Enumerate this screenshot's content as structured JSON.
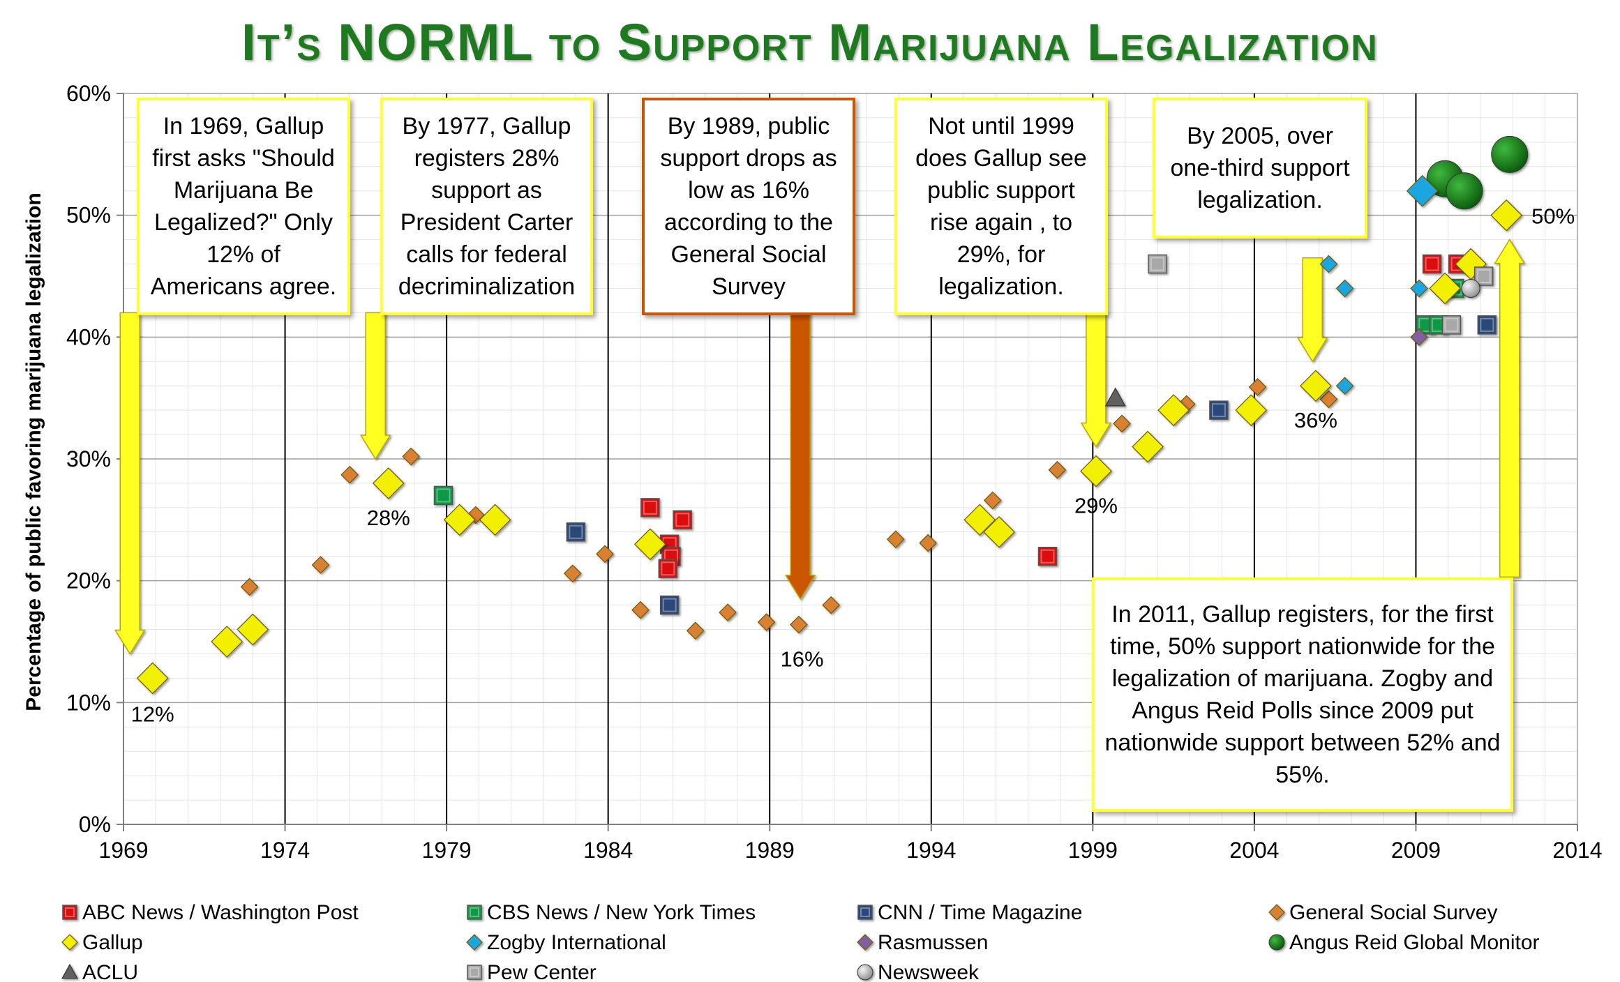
{
  "title": "It’s NORML to Support Marijuana Legalization",
  "colors": {
    "abc": "#dd1111",
    "cbs": "#119944",
    "cnn": "#2a4a7a",
    "gss": "#d98030",
    "gallup": "#f2ef00",
    "zogby": "#1fa6e0",
    "rasmussen": "#8060a0",
    "angus": "#0c6e0c",
    "aclu": "#606060",
    "pew": "#a8a8a8",
    "newsweek": "#c4c4c4",
    "arrow_yellow": "#ffff22",
    "arrow_orange": "#cc5500"
  },
  "callouts": [
    {
      "id": "c1969",
      "text": "In 1969, Gallup first asks \"Should Marijuana Be Legalized?\"  Only 12% of Americans agree.",
      "style": "yellow"
    },
    {
      "id": "c1977",
      "text": "By 1977, Gallup registers 28% support as President Carter calls for federal decriminalization",
      "style": "yellow"
    },
    {
      "id": "c1989",
      "text": "By 1989, public support drops as low as 16% according to the General Social Survey",
      "style": "orange"
    },
    {
      "id": "c1999",
      "text": "Not until 1999 does Gallup see public support rise again , to 29%, for legalization.",
      "style": "yellow"
    },
    {
      "id": "c2005",
      "text": "By 2005, over one-third support legalization.",
      "style": "yellow"
    },
    {
      "id": "c2011",
      "text": "In 2011, Gallup registers, for the first time, 50% support nationwide for the legalization of marijuana. Zogby and Angus Reid Polls since 2009 put nationwide support between 52% and 55%.",
      "style": "yellow"
    }
  ],
  "chart_data": {
    "type": "scatter",
    "title": "It’s NORML to Support Marijuana Legalization",
    "xlabel": "",
    "ylabel": "Percentage of public favoring marijuana legalization",
    "xlim": [
      1969,
      2014
    ],
    "ylim": [
      0,
      60
    ],
    "x_ticks": [
      "1969",
      "1974",
      "1979",
      "1984",
      "1989",
      "1994",
      "1999",
      "2004",
      "2009",
      "2014"
    ],
    "y_ticks": [
      "0%",
      "10%",
      "20%",
      "30%",
      "40%",
      "50%",
      "60%"
    ],
    "grid": true,
    "legend_position": "bottom",
    "point_labels": [
      {
        "x": 1969.9,
        "y": 12,
        "text": "12%"
      },
      {
        "x": 1977.2,
        "y": 28,
        "text": "28%"
      },
      {
        "x": 1990.0,
        "y": 16.4,
        "text": "16%"
      },
      {
        "x": 1999.1,
        "y": 29,
        "text": "29%"
      },
      {
        "x": 2005.9,
        "y": 36,
        "text": "36%"
      },
      {
        "x": 2011.8,
        "y": 50,
        "text": "50%"
      }
    ],
    "series": [
      {
        "name": "ABC News / Washington Post",
        "key": "abc",
        "marker": "square",
        "points": [
          [
            1985.3,
            26
          ],
          [
            1985.9,
            23
          ],
          [
            1985.95,
            22
          ],
          [
            1985.85,
            21
          ],
          [
            1986.3,
            25
          ],
          [
            1997.6,
            22
          ],
          [
            2009.5,
            46
          ],
          [
            2010.3,
            46
          ]
        ]
      },
      {
        "name": "CBS News / New York Times",
        "key": "cbs",
        "marker": "square",
        "points": [
          [
            1978.9,
            27
          ],
          [
            2009.3,
            41
          ],
          [
            2009.7,
            41
          ],
          [
            2010.2,
            44
          ]
        ]
      },
      {
        "name": "CNN / Time Magazine",
        "key": "cnn",
        "marker": "square",
        "points": [
          [
            1983.0,
            24
          ],
          [
            1985.9,
            18
          ],
          [
            2002.9,
            34
          ],
          [
            2011.2,
            41
          ]
        ]
      },
      {
        "name": "General Social Survey",
        "key": "gss",
        "marker": "diamond",
        "points": [
          [
            1975.1,
            21.3
          ],
          [
            1976.0,
            28.7
          ],
          [
            1972.9,
            19.5
          ],
          [
            1977.9,
            30.2
          ],
          [
            1979.9,
            25.4
          ],
          [
            1982.9,
            20.6
          ],
          [
            1983.9,
            22.2
          ],
          [
            1985.0,
            17.6
          ],
          [
            1986.7,
            15.9
          ],
          [
            1987.7,
            17.4
          ],
          [
            1988.9,
            16.6
          ],
          [
            1989.9,
            16.4
          ],
          [
            1990.9,
            18.0
          ],
          [
            1992.9,
            23.4
          ],
          [
            1993.9,
            23.1
          ],
          [
            1995.9,
            26.6
          ],
          [
            1997.9,
            29.1
          ],
          [
            1999.9,
            32.9
          ],
          [
            2001.9,
            34.5
          ],
          [
            2004.1,
            35.9
          ],
          [
            2006.3,
            34.9
          ]
        ]
      },
      {
        "name": "Gallup",
        "key": "gallup",
        "marker": "diamond",
        "size": "large",
        "points": [
          [
            1969.9,
            12
          ],
          [
            1972.2,
            15
          ],
          [
            1973.0,
            16
          ],
          [
            1977.2,
            28
          ],
          [
            1979.4,
            25
          ],
          [
            1980.5,
            25
          ],
          [
            1985.3,
            23
          ],
          [
            1995.5,
            25
          ],
          [
            1996.1,
            24
          ],
          [
            1999.1,
            29
          ],
          [
            2000.7,
            31
          ],
          [
            2001.5,
            34
          ],
          [
            2003.9,
            34
          ],
          [
            2005.9,
            36
          ],
          [
            2009.9,
            44
          ],
          [
            2010.7,
            46
          ],
          [
            2011.8,
            50
          ]
        ]
      },
      {
        "name": "Zogby International",
        "key": "zogby",
        "marker": "diamond",
        "points": [
          [
            2006.3,
            46
          ],
          [
            2006.8,
            44
          ],
          [
            2006.8,
            36
          ],
          [
            2009.1,
            44
          ]
        ]
      },
      {
        "name": "Rasmussen",
        "key": "rasmussen",
        "marker": "diamond",
        "points": [
          [
            2009.1,
            40
          ]
        ]
      },
      {
        "name": "Angus Reid Global Monitor",
        "key": "angus",
        "marker": "circle",
        "points": [
          [
            2009.9,
            53
          ],
          [
            2010.5,
            52
          ],
          [
            2011.9,
            55
          ]
        ]
      },
      {
        "name": "ACLU",
        "key": "aclu",
        "marker": "triangle",
        "points": [
          [
            1999.7,
            35
          ]
        ]
      },
      {
        "name": "Pew Center",
        "key": "pew",
        "marker": "square",
        "points": [
          [
            2001.0,
            46
          ],
          [
            2010.1,
            41
          ],
          [
            2011.1,
            45
          ]
        ]
      },
      {
        "name": "Newsweek",
        "key": "newsweek",
        "marker": "circle",
        "points": [
          [
            2010.7,
            44
          ]
        ]
      },
      {
        "name": "Zogby International",
        "key": "zogby",
        "marker": "diamond",
        "size": "large",
        "legend": false,
        "points": [
          [
            2009.2,
            52
          ]
        ]
      }
    ]
  }
}
